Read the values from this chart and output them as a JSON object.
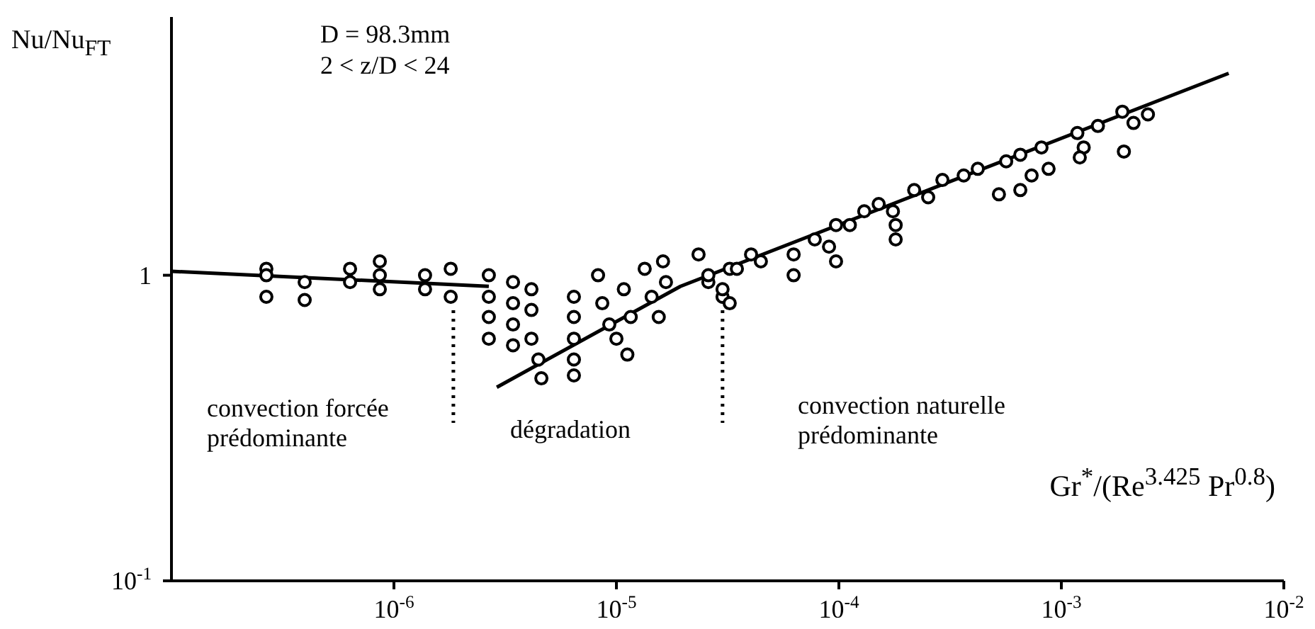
{
  "chart_data": {
    "type": "scatter",
    "xlabel": "Gr$^{*}$/(Re$^{3.425}$ Pr$^{0.8}$)",
    "ylabel": "Nu/Nu$_{FT}$",
    "log": "xy",
    "marker": "circle",
    "xlim": [
      1e-07,
      0.01
    ],
    "xticks": [
      {
        "value": 1e-06,
        "label": "10$^{-6}$"
      },
      {
        "value": 1e-05,
        "label": "10$^{-5}$"
      },
      {
        "value": 0.0001,
        "label": "10$^{-4}$"
      },
      {
        "value": 0.001,
        "label": "10$^{-3}$"
      },
      {
        "value": 0.01,
        "label": "10$^{-2}$"
      }
    ],
    "ylim": [
      0.1,
      7
    ],
    "yticks": [
      {
        "value": 0.1,
        "label": "10$^{-1}$"
      },
      1
    ],
    "annotations": [
      "D = 98.3mm",
      "2 < z/D < 24",
      "convection forcée prédominante",
      "dégradation",
      "convection naturelle prédominante"
    ],
    "ref_lines": [
      {
        "axis": "x",
        "value": 1.85e-06,
        "color": "#000000",
        "line_style": "dotted"
      },
      {
        "axis": "x",
        "value": 3e-05,
        "color": "#000000",
        "line_style": "dotted"
      }
    ],
    "series": [
      {
        "color": "#000000",
        "x": [
          2.67e-07,
          2.67e-07,
          2.67e-07,
          3.97e-07,
          3.97e-07,
          6.35e-07,
          6.35e-07,
          8.64e-07,
          8.64e-07,
          8.64e-07,
          1.38e-06,
          1.38e-06,
          1.8e-06,
          1.8e-06,
          2.67e-06,
          2.67e-06,
          2.67e-06,
          2.67e-06,
          3.43e-06,
          3.43e-06,
          3.43e-06,
          3.43e-06,
          4.15e-06,
          4.15e-06,
          4.15e-06,
          4.46e-06,
          4.6e-06,
          6.44e-06,
          6.44e-06,
          6.44e-06,
          6.44e-06,
          6.44e-06,
          8.27e-06,
          8.64e-06,
          9.29e-06,
          1e-05,
          1.08e-05,
          1.12e-05,
          1.16e-05,
          1.34e-05,
          1.44e-05,
          1.55e-05,
          1.67e-05,
          1.62e-05,
          2.34e-05,
          2.59e-05,
          3e-05,
          3.23e-05,
          2.59e-05,
          3e-05,
          3.48e-05,
          4.03e-05,
          4.46e-05,
          3.23e-05,
          6.26e-05,
          6.26e-05,
          7.79e-05,
          9.03e-05,
          9.71e-05,
          9.71e-05,
          0.000112,
          0.00013,
          0.000151,
          0.000175,
          0.00018,
          0.00018,
          0.000218,
          0.000252,
          0.000292,
          0.000364,
          0.000421,
          0.000524,
          0.000654,
          0.000565,
          0.000654,
          0.000814,
          0.000876,
          0.000735,
          0.00118,
          0.00126,
          0.00121,
          0.00146,
          0.00191,
          0.00188,
          0.00211,
          0.00245
        ],
        "values": [
          1.05,
          1.0,
          0.85,
          0.95,
          0.83,
          1.05,
          0.95,
          1.11,
          1.0,
          0.9,
          1.0,
          0.9,
          1.05,
          0.85,
          1.0,
          0.85,
          0.73,
          0.62,
          0.95,
          0.81,
          0.69,
          0.59,
          0.9,
          0.77,
          0.62,
          0.53,
          0.46,
          0.85,
          0.73,
          0.62,
          0.53,
          0.47,
          1.0,
          0.81,
          0.69,
          0.62,
          0.9,
          0.55,
          0.73,
          1.05,
          0.85,
          0.73,
          0.95,
          1.11,
          1.17,
          0.95,
          0.85,
          1.05,
          1.0,
          0.9,
          1.05,
          1.17,
          1.11,
          0.81,
          1.17,
          1.0,
          1.31,
          1.24,
          1.11,
          1.46,
          1.46,
          1.62,
          1.71,
          1.62,
          1.46,
          1.31,
          1.9,
          1.8,
          2.05,
          2.12,
          2.23,
          1.84,
          1.9,
          2.36,
          2.48,
          2.62,
          2.23,
          2.12,
          2.92,
          2.62,
          2.43,
          3.08,
          2.54,
          3.43,
          3.15,
          3.36
        ]
      },
      {
        "type": "line",
        "color": "#000000",
        "marker": "none",
        "x": [
          1e-07,
          2.67e-06
        ],
        "values": [
          1.03,
          0.92
        ]
      },
      {
        "type": "line",
        "color": "#000000",
        "marker": "none",
        "x": [
          2.9e-06,
          1.94e-05,
          0.00565
        ],
        "values": [
          0.43,
          0.92,
          4.58
        ]
      }
    ]
  }
}
